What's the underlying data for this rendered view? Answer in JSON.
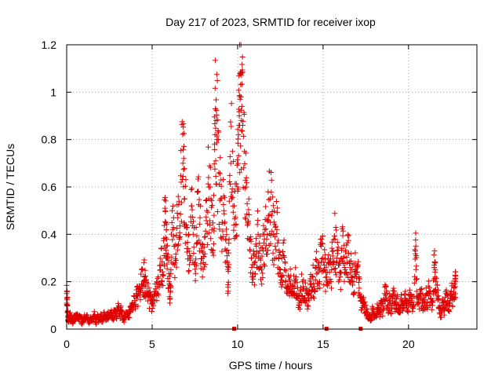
{
  "chart_data": {
    "type": "scatter",
    "title": "Day 217 of 2023, SRMTID for receiver ixop",
    "xlabel": "GPS time / hours",
    "ylabel": "SRMTID / TECUs",
    "xlim": [
      0,
      24
    ],
    "ylim": [
      0,
      1.2
    ],
    "xticks": [
      0,
      5,
      10,
      15,
      20
    ],
    "xtick_labels": [
      "0",
      "5",
      "10",
      "15",
      "20"
    ],
    "yticks": [
      0,
      0.2,
      0.4,
      0.6,
      0.8,
      1.0,
      1.2
    ],
    "ytick_labels": [
      "0",
      "0.2",
      "0.4",
      "0.6",
      "0.8",
      "1",
      "1.2"
    ],
    "grid": true,
    "marker": "plus",
    "color": "#e00000",
    "series": [
      {
        "name": "SRMTID",
        "points": [
          [
            0.0,
            0.15
          ],
          [
            0.02,
            0.13
          ],
          [
            0.05,
            0.1
          ],
          [
            0.08,
            0.05
          ],
          [
            0.12,
            0.04
          ],
          [
            0.18,
            0.06
          ],
          [
            0.25,
            0.04
          ],
          [
            0.3,
            0.05
          ],
          [
            0.38,
            0.03
          ],
          [
            0.45,
            0.05
          ],
          [
            0.5,
            0.04
          ],
          [
            0.6,
            0.06
          ],
          [
            0.7,
            0.04
          ],
          [
            0.8,
            0.05
          ],
          [
            0.9,
            0.03
          ],
          [
            1.0,
            0.05
          ],
          [
            1.1,
            0.04
          ],
          [
            1.2,
            0.06
          ],
          [
            1.3,
            0.03
          ],
          [
            1.4,
            0.05
          ],
          [
            1.5,
            0.04
          ],
          [
            1.6,
            0.06
          ],
          [
            1.7,
            0.03
          ],
          [
            1.8,
            0.05
          ],
          [
            1.9,
            0.04
          ],
          [
            2.0,
            0.06
          ],
          [
            2.1,
            0.03
          ],
          [
            2.2,
            0.07
          ],
          [
            2.3,
            0.04
          ],
          [
            2.4,
            0.06
          ],
          [
            2.5,
            0.05
          ],
          [
            2.6,
            0.07
          ],
          [
            2.7,
            0.04
          ],
          [
            2.8,
            0.08
          ],
          [
            2.9,
            0.05
          ],
          [
            3.0,
            0.09
          ],
          [
            3.1,
            0.06
          ],
          [
            3.2,
            0.08
          ],
          [
            3.3,
            0.05
          ],
          [
            3.4,
            0.04
          ],
          [
            3.5,
            0.06
          ],
          [
            3.6,
            0.05
          ],
          [
            3.7,
            0.07
          ],
          [
            3.8,
            0.08
          ],
          [
            3.9,
            0.1
          ],
          [
            4.0,
            0.12
          ],
          [
            4.1,
            0.13
          ],
          [
            4.2,
            0.15
          ],
          [
            4.3,
            0.17
          ],
          [
            4.4,
            0.19
          ],
          [
            4.5,
            0.2
          ],
          [
            4.55,
            0.22
          ],
          [
            4.6,
            0.18
          ],
          [
            4.7,
            0.16
          ],
          [
            4.8,
            0.14
          ],
          [
            4.9,
            0.12
          ],
          [
            5.0,
            0.11
          ],
          [
            5.1,
            0.14
          ],
          [
            5.2,
            0.17
          ],
          [
            5.3,
            0.15
          ],
          [
            5.4,
            0.19
          ],
          [
            5.5,
            0.27
          ],
          [
            5.6,
            0.23
          ],
          [
            5.7,
            0.31
          ],
          [
            5.75,
            0.51
          ],
          [
            5.8,
            0.45
          ],
          [
            5.85,
            0.38
          ],
          [
            5.9,
            0.3
          ],
          [
            6.0,
            0.2
          ],
          [
            6.05,
            0.13
          ],
          [
            6.1,
            0.25
          ],
          [
            6.2,
            0.42
          ],
          [
            6.3,
            0.35
          ],
          [
            6.4,
            0.29
          ],
          [
            6.5,
            0.47
          ],
          [
            6.6,
            0.38
          ],
          [
            6.7,
            0.62
          ],
          [
            6.8,
            0.7
          ],
          [
            6.85,
            0.72
          ],
          [
            6.9,
            0.55
          ],
          [
            7.0,
            0.44
          ],
          [
            7.1,
            0.34
          ],
          [
            7.2,
            0.31
          ],
          [
            7.3,
            0.52
          ],
          [
            7.4,
            0.4
          ],
          [
            7.5,
            0.28
          ],
          [
            7.6,
            0.36
          ],
          [
            7.7,
            0.58
          ],
          [
            7.8,
            0.47
          ],
          [
            7.9,
            0.33
          ],
          [
            8.0,
            0.28
          ],
          [
            8.1,
            0.39
          ],
          [
            8.2,
            0.5
          ],
          [
            8.3,
            0.64
          ],
          [
            8.4,
            0.6
          ],
          [
            8.5,
            0.42
          ],
          [
            8.6,
            0.36
          ],
          [
            8.65,
            0.78
          ],
          [
            8.7,
            0.93
          ],
          [
            8.75,
            0.88
          ],
          [
            8.8,
            0.8
          ],
          [
            8.9,
            0.66
          ],
          [
            9.0,
            0.55
          ],
          [
            9.1,
            0.45
          ],
          [
            9.2,
            0.5
          ],
          [
            9.3,
            0.38
          ],
          [
            9.4,
            0.28
          ],
          [
            9.45,
            0.16
          ],
          [
            9.5,
            0.38
          ],
          [
            9.6,
            0.7
          ],
          [
            9.7,
            0.75
          ],
          [
            9.8,
            0.52
          ],
          [
            9.9,
            0.44
          ],
          [
            10.0,
            0.6
          ],
          [
            10.05,
            0.82
          ],
          [
            10.1,
            0.9
          ],
          [
            10.15,
            1.08
          ],
          [
            10.2,
            0.98
          ],
          [
            10.25,
            0.94
          ],
          [
            10.3,
            0.86
          ],
          [
            10.4,
            0.75
          ],
          [
            10.5,
            0.6
          ],
          [
            10.6,
            0.45
          ],
          [
            10.7,
            0.38
          ],
          [
            10.8,
            0.3
          ],
          [
            10.9,
            0.22
          ],
          [
            11.0,
            0.28
          ],
          [
            11.1,
            0.35
          ],
          [
            11.2,
            0.4
          ],
          [
            11.3,
            0.3
          ],
          [
            11.4,
            0.25
          ],
          [
            11.5,
            0.33
          ],
          [
            11.6,
            0.42
          ],
          [
            11.7,
            0.38
          ],
          [
            11.8,
            0.46
          ],
          [
            11.9,
            0.55
          ],
          [
            12.0,
            0.48
          ],
          [
            12.1,
            0.4
          ],
          [
            12.2,
            0.35
          ],
          [
            12.3,
            0.42
          ],
          [
            12.4,
            0.3
          ],
          [
            12.5,
            0.25
          ],
          [
            12.6,
            0.22
          ],
          [
            12.7,
            0.31
          ],
          [
            12.8,
            0.2
          ],
          [
            12.9,
            0.17
          ],
          [
            13.0,
            0.22
          ],
          [
            13.1,
            0.19
          ],
          [
            13.2,
            0.15
          ],
          [
            13.3,
            0.18
          ],
          [
            13.4,
            0.21
          ],
          [
            13.5,
            0.14
          ],
          [
            13.6,
            0.1
          ],
          [
            13.7,
            0.16
          ],
          [
            13.8,
            0.2
          ],
          [
            13.9,
            0.12
          ],
          [
            14.0,
            0.17
          ],
          [
            14.1,
            0.1
          ],
          [
            14.2,
            0.15
          ],
          [
            14.3,
            0.19
          ],
          [
            14.4,
            0.22
          ],
          [
            14.5,
            0.16
          ],
          [
            14.6,
            0.26
          ],
          [
            14.7,
            0.24
          ],
          [
            14.8,
            0.2
          ],
          [
            14.9,
            0.35
          ],
          [
            15.0,
            0.3
          ],
          [
            15.1,
            0.25
          ],
          [
            15.2,
            0.22
          ],
          [
            15.3,
            0.28
          ],
          [
            15.4,
            0.2
          ],
          [
            15.5,
            0.25
          ],
          [
            15.6,
            0.33
          ],
          [
            15.7,
            0.38
          ],
          [
            15.8,
            0.3
          ],
          [
            15.9,
            0.27
          ],
          [
            16.0,
            0.22
          ],
          [
            16.1,
            0.34
          ],
          [
            16.2,
            0.3
          ],
          [
            16.3,
            0.25
          ],
          [
            16.4,
            0.28
          ],
          [
            16.5,
            0.32
          ],
          [
            16.6,
            0.26
          ],
          [
            16.7,
            0.22
          ],
          [
            16.8,
            0.2
          ],
          [
            16.9,
            0.25
          ],
          [
            17.0,
            0.24
          ],
          [
            17.1,
            0.22
          ],
          [
            17.2,
            0.12
          ],
          [
            17.3,
            0.09
          ],
          [
            17.4,
            0.11
          ],
          [
            17.5,
            0.07
          ],
          [
            17.6,
            0.06
          ],
          [
            17.7,
            0.05
          ],
          [
            17.8,
            0.04
          ],
          [
            17.9,
            0.08
          ],
          [
            18.0,
            0.06
          ],
          [
            18.1,
            0.05
          ],
          [
            18.2,
            0.09
          ],
          [
            18.3,
            0.07
          ],
          [
            18.4,
            0.1
          ],
          [
            18.5,
            0.08
          ],
          [
            18.6,
            0.15
          ],
          [
            18.7,
            0.13
          ],
          [
            18.8,
            0.1
          ],
          [
            18.9,
            0.12
          ],
          [
            19.0,
            0.09
          ],
          [
            19.1,
            0.14
          ],
          [
            19.2,
            0.11
          ],
          [
            19.3,
            0.13
          ],
          [
            19.4,
            0.1
          ],
          [
            19.5,
            0.08
          ],
          [
            19.6,
            0.12
          ],
          [
            19.7,
            0.1
          ],
          [
            19.8,
            0.13
          ],
          [
            19.9,
            0.09
          ],
          [
            20.0,
            0.11
          ],
          [
            20.1,
            0.14
          ],
          [
            20.2,
            0.12
          ],
          [
            20.3,
            0.1
          ],
          [
            20.4,
            0.33
          ],
          [
            20.45,
            0.31
          ],
          [
            20.5,
            0.13
          ],
          [
            20.6,
            0.11
          ],
          [
            20.7,
            0.15
          ],
          [
            20.8,
            0.12
          ],
          [
            20.9,
            0.1
          ],
          [
            21.0,
            0.14
          ],
          [
            21.1,
            0.11
          ],
          [
            21.2,
            0.16
          ],
          [
            21.3,
            0.13
          ],
          [
            21.4,
            0.1
          ],
          [
            21.5,
            0.26
          ],
          [
            21.55,
            0.24
          ],
          [
            21.6,
            0.2
          ],
          [
            21.7,
            0.14
          ],
          [
            21.8,
            0.09
          ],
          [
            21.9,
            0.07
          ],
          [
            22.0,
            0.12
          ],
          [
            22.1,
            0.08
          ],
          [
            22.2,
            0.15
          ],
          [
            22.3,
            0.12
          ],
          [
            22.4,
            0.1
          ],
          [
            22.5,
            0.16
          ],
          [
            22.6,
            0.13
          ],
          [
            22.7,
            0.19
          ],
          [
            22.75,
            0.2
          ]
        ]
      }
    ],
    "gap_markers_x": [
      9.8,
      15.2,
      17.2
    ]
  }
}
